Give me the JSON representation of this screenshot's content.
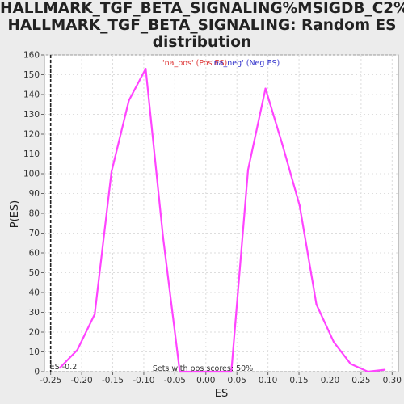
{
  "title_lines": [
    "HALLMARK_TGF_BETA_SIGNALING%MSIGDB_C2%",
    "HALLMARK_TGF_BETA_SIGNALING: Random ES",
    "distribution"
  ],
  "chart_data": {
    "type": "line",
    "title": "HALLMARK_TGF_BETA_SIGNALING%MSIGDB_C2% HALLMARK_TGF_BETA_SIGNALING: Random ES distribution",
    "xlabel": "ES",
    "ylabel": "P(ES)",
    "xlim": [
      -0.26,
      0.31
    ],
    "ylim": [
      0,
      160
    ],
    "xticks": [
      "-0.25",
      "-0.20",
      "-0.15",
      "-0.10",
      "-0.05",
      "0.00",
      "0.05",
      "0.10",
      "0.15",
      "0.20",
      "0.25",
      "0.30"
    ],
    "xtick_values": [
      -0.25,
      -0.2,
      -0.15,
      -0.1,
      -0.05,
      0.0,
      0.05,
      0.1,
      0.15,
      0.2,
      0.25,
      0.3
    ],
    "yticks": [
      0,
      10,
      20,
      30,
      40,
      50,
      60,
      70,
      80,
      90,
      100,
      110,
      120,
      130,
      140,
      150,
      160
    ],
    "grid": true,
    "line_color": "#ff44ff",
    "series": [
      {
        "x": [
          -0.235,
          -0.207,
          -0.179,
          -0.152,
          -0.124,
          -0.097,
          -0.069,
          -0.042,
          0.041,
          0.068,
          0.096,
          0.123,
          0.151,
          0.178,
          0.206,
          0.233,
          0.261,
          0.288
        ],
        "y": [
          2,
          11,
          29,
          101,
          137,
          153,
          68,
          0,
          0,
          102,
          143,
          115,
          84,
          34,
          15,
          4,
          0,
          1
        ]
      }
    ],
    "legend": [
      {
        "label": "'na_pos' (Pos ES)",
        "color": "#dd3333"
      },
      {
        "label": "'na_neg' (Neg ES)",
        "color": "#3333cc"
      }
    ],
    "es_marker": {
      "x": -0.25,
      "label": "ES -0.2"
    },
    "annotation": "Sets with pos scores: 50%"
  }
}
